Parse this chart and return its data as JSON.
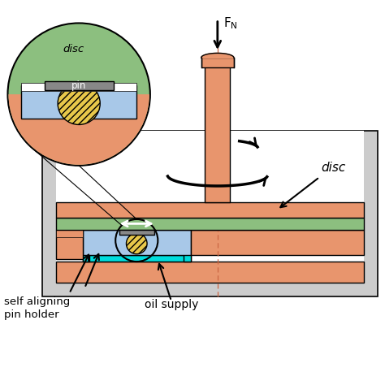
{
  "colors": {
    "salmon": "#E8956D",
    "green": "#8CBF7F",
    "blue_light": "#A8C8E8",
    "yellow": "#E8C84A",
    "cyan": "#00DDDD",
    "gray_light": "#CCCCCC",
    "gray_dark": "#888888",
    "white": "#FFFFFF",
    "black": "#000000",
    "dash_color": "#CC6644"
  },
  "figsize": [
    4.74,
    4.74
  ],
  "dpi": 100,
  "xlim": [
    0,
    10
  ],
  "ylim": [
    0,
    10
  ]
}
